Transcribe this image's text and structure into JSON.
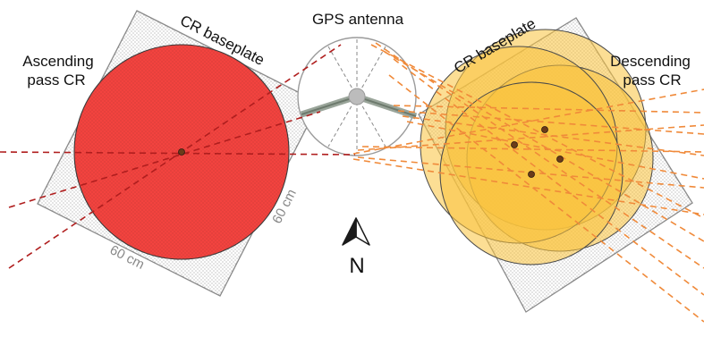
{
  "labels": {
    "gps_antenna": "GPS antenna",
    "left_baseplate": "CR baseplate",
    "right_baseplate": "CR baseplate",
    "ascending_line1": "Ascending",
    "ascending_line2": "pass CR",
    "descending_line1": "Descending",
    "descending_line2": "pass CR",
    "dim_bottom": "60 cm",
    "dim_side": "60 cm",
    "north": "N"
  },
  "icons": {
    "north_arrow": "north-arrow-icon"
  },
  "colors": {
    "ascending_cr": "#f2433f",
    "descending_cr": "#f9c23c",
    "ascending_rays": "#b01e1e",
    "descending_rays": "#f08a3a",
    "plate_edge": "#8a8a8a",
    "text": "#111111",
    "dimension_text": "#888888"
  }
}
